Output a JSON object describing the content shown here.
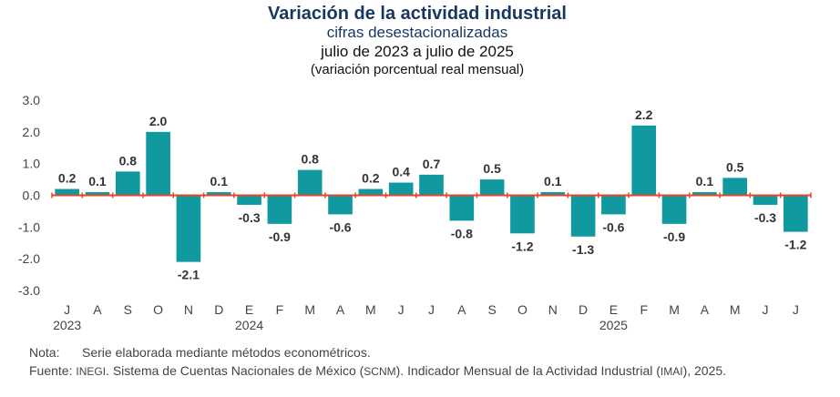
{
  "chart_data": {
    "type": "bar",
    "title": "Variación de la actividad industrial",
    "subtitle": "cifras desestacionalizadas",
    "period": "julio de 2023 a julio de 2025",
    "unit_label": "(variación porcentual real mensual)",
    "categories": [
      "J",
      "A",
      "S",
      "O",
      "N",
      "D",
      "E",
      "F",
      "M",
      "A",
      "M",
      "J",
      "J",
      "A",
      "S",
      "O",
      "N",
      "D",
      "E",
      "F",
      "M",
      "A",
      "M",
      "J",
      "J"
    ],
    "values": [
      0.2,
      0.1,
      0.75,
      2.0,
      -2.1,
      0.1,
      -0.3,
      -0.9,
      0.8,
      -0.6,
      0.2,
      0.4,
      0.65,
      -0.8,
      0.5,
      -1.2,
      0.1,
      -1.3,
      -0.6,
      2.2,
      -0.9,
      0.1,
      0.55,
      -0.3,
      -1.15
    ],
    "value_labels": [
      "0.2",
      "0.1",
      "0.8",
      "2.0",
      "-2.1",
      "0.1",
      "-0.3",
      "-0.9",
      "0.8",
      "-0.6",
      "0.2",
      "0.4",
      "0.7",
      "-0.8",
      "0.5",
      "-1.2",
      "0.1",
      "-1.3",
      "-0.6",
      "2.2",
      "-0.9",
      "0.1",
      "0.5",
      "-0.3",
      "-1.2"
    ],
    "year_labels": [
      {
        "index": 0,
        "label": "2023"
      },
      {
        "index": 6,
        "label": "2024"
      },
      {
        "index": 18,
        "label": "2025"
      }
    ],
    "ylim": [
      -3.0,
      3.0
    ],
    "yticks": [
      3.0,
      2.0,
      1.0,
      0.0,
      -1.0,
      -2.0,
      -3.0
    ],
    "ytick_labels": [
      "3.0",
      "2.0",
      "1.0",
      "0.0",
      "-1.0",
      "-2.0",
      "-3.0"
    ],
    "bar_color": "#10999e",
    "zero_line_color": "#e8462a",
    "xlabel": "",
    "ylabel": ""
  },
  "notes": {
    "nota_label": "Nota:",
    "nota_text": "Serie elaborada mediante métodos econométricos.",
    "fuente_label": "Fuente:",
    "fuente_org": "INEGI",
    "fuente_text1": ". Sistema de Cuentas Nacionales de México (",
    "fuente_abbr1": "SCNM",
    "fuente_text2": "). Indicador Mensual de la Actividad Industrial (",
    "fuente_abbr2": "IMAI",
    "fuente_text3": "), 2025."
  }
}
